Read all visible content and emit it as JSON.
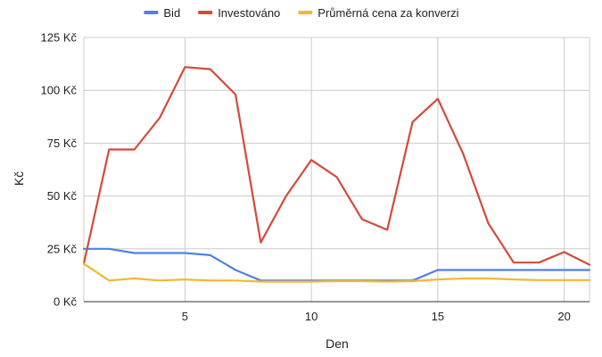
{
  "chart_data": {
    "type": "line",
    "title": "",
    "xlabel": "Den",
    "ylabel": "Kč",
    "xlim": [
      1,
      21
    ],
    "ylim": [
      0,
      125
    ],
    "x_ticks": [
      5,
      10,
      15,
      20
    ],
    "y_ticks": [
      "0 Kč",
      "25 Kč",
      "50 Kč",
      "75 Kč",
      "100 Kč",
      "125 Kč"
    ],
    "y_tick_values": [
      0,
      25,
      50,
      75,
      100,
      125
    ],
    "grid": true,
    "legend_position": "top",
    "x": [
      1,
      2,
      3,
      4,
      5,
      6,
      7,
      8,
      9,
      10,
      11,
      12,
      13,
      14,
      15,
      16,
      17,
      18,
      19,
      20,
      21
    ],
    "series": [
      {
        "name": "Bid",
        "color": "#4f81e6",
        "values": [
          25,
          25,
          23,
          23,
          23,
          22,
          15,
          10,
          10,
          10,
          10,
          10,
          10,
          10,
          15,
          15,
          15,
          15,
          15,
          15,
          15
        ]
      },
      {
        "name": "Investováno",
        "color": "#d44a3a",
        "values": [
          18,
          72,
          72,
          87,
          111,
          110,
          98,
          28,
          50,
          67,
          59,
          39,
          34,
          85,
          96,
          70,
          37,
          18.5,
          18.5,
          23.5,
          17.5
        ]
      },
      {
        "name": "Průměrná cena za konverzi",
        "color": "#f4b82e",
        "values": [
          18,
          10,
          11,
          10,
          10.5,
          10,
          10,
          9.5,
          9.5,
          9.5,
          9.7,
          9.7,
          9.5,
          9.7,
          10.5,
          11,
          11,
          10.5,
          10.2,
          10.2,
          10.2
        ]
      }
    ]
  }
}
